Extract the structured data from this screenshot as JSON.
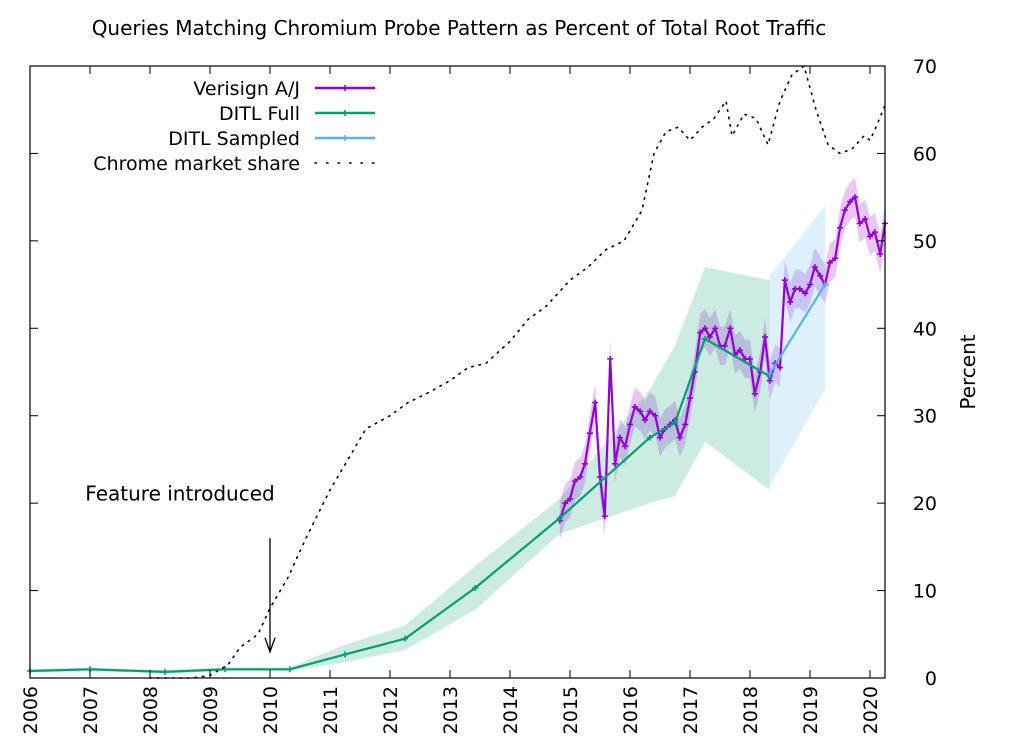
{
  "chart_data": {
    "type": "line",
    "title": "Queries Matching Chromium Probe Pattern as Percent of Total Root Traffic",
    "xlabel": "",
    "ylabel": "Percent",
    "xlim": [
      2006,
      2020.25
    ],
    "ylim": [
      0,
      70
    ],
    "x_ticks": [
      "2006",
      "2007",
      "2008",
      "2009",
      "2010",
      "2011",
      "2012",
      "2013",
      "2014",
      "2015",
      "2016",
      "2017",
      "2018",
      "2019",
      "2020"
    ],
    "y_ticks": [
      "0",
      "10",
      "20",
      "30",
      "40",
      "50",
      "60",
      "70"
    ],
    "y_axis_side": "right",
    "grid": false,
    "legend_position": "top-left",
    "annotation": {
      "text": "Feature introduced",
      "x": 2010.0,
      "y_text": 18,
      "arrow_from": 16,
      "arrow_to": 3
    },
    "series": [
      {
        "name": "Verisign A/J",
        "color": "#9400d3",
        "band_color": "#9400d3",
        "x": [
          2014.83,
          2014.92,
          2015.0,
          2015.08,
          2015.17,
          2015.25,
          2015.33,
          2015.42,
          2015.5,
          2015.58,
          2015.67,
          2015.75,
          2015.83,
          2015.92,
          2016.0,
          2016.08,
          2016.17,
          2016.25,
          2016.33,
          2016.42,
          2016.5,
          2016.58,
          2016.67,
          2016.75,
          2016.83,
          2016.92,
          2017.0,
          2017.08,
          2017.17,
          2017.25,
          2017.33,
          2017.42,
          2017.5,
          2017.58,
          2017.67,
          2017.75,
          2017.83,
          2017.92,
          2018.0,
          2018.08,
          2018.17,
          2018.25,
          2018.33,
          2018.42,
          2018.5,
          2018.58,
          2018.67,
          2018.75,
          2018.83,
          2018.92,
          2019.0,
          2019.08,
          2019.17,
          2019.25,
          2019.33,
          2019.42,
          2019.5,
          2019.58,
          2019.67,
          2019.75,
          2019.83,
          2019.92,
          2020.0,
          2020.08,
          2020.17,
          2020.25
        ],
        "y": [
          18,
          20,
          20.5,
          22.5,
          23,
          24.5,
          28,
          31.5,
          23,
          18.5,
          36.5,
          24.5,
          27.5,
          26.5,
          29,
          31,
          30.5,
          29.5,
          30.5,
          30,
          27.5,
          28.5,
          29,
          29.5,
          27.5,
          29,
          32,
          35,
          39.5,
          40,
          39,
          40,
          38,
          38,
          40,
          37,
          37.5,
          36.5,
          36.5,
          32.5,
          35,
          39,
          34,
          36,
          35.5,
          45.5,
          43,
          44.5,
          44.5,
          44,
          45,
          47,
          46,
          45,
          47.5,
          48,
          51.5,
          53.5,
          54.5,
          55,
          52,
          52.5,
          50.5,
          51,
          48.5,
          52
        ],
        "band_halfwidth": 2.2
      },
      {
        "name": "DITL Full",
        "color": "#009e73",
        "band_color": "#009e73",
        "x": [
          2006.0,
          2007.0,
          2008.25,
          2009.25,
          2010.33,
          2011.25,
          2012.25,
          2013.42,
          2014.83,
          2016.33,
          2016.75,
          2017.25,
          2018.33
        ],
        "y": [
          0.8,
          1.0,
          0.7,
          1.0,
          1.0,
          2.7,
          4.5,
          10.3,
          18.3,
          27.5,
          29.2,
          38.8,
          34.5
        ],
        "band_low": [
          0.6,
          0.8,
          0.5,
          0.8,
          0.8,
          1.8,
          3.2,
          7.8,
          16.5,
          20,
          20.8,
          27,
          21.5
        ],
        "band_high": [
          1.0,
          1.2,
          0.9,
          1.2,
          1.2,
          3.8,
          6,
          12.8,
          20.5,
          33,
          38,
          47,
          45.5
        ]
      },
      {
        "name": "DITL Sampled",
        "color": "#56b4e9",
        "band_color": "#56b4e9",
        "x": [
          2018.33,
          2019.25
        ],
        "y": [
          34.8,
          45
        ],
        "band_low": [
          22,
          33
        ],
        "band_high": [
          46,
          54
        ]
      },
      {
        "name": "Chrome market share",
        "color": "#000000",
        "style": "dotted",
        "x": [
          2008.0,
          2008.7,
          2009.0,
          2009.3,
          2009.5,
          2009.8,
          2010.0,
          2010.3,
          2010.6,
          2011.0,
          2011.3,
          2011.6,
          2012.0,
          2012.3,
          2012.6,
          2013.0,
          2013.3,
          2013.6,
          2014.0,
          2014.3,
          2014.6,
          2015.0,
          2015.3,
          2015.6,
          2015.9,
          2016.2,
          2016.4,
          2016.6,
          2016.8,
          2017.0,
          2017.2,
          2017.4,
          2017.5,
          2017.6,
          2017.7,
          2017.9,
          2018.1,
          2018.3,
          2018.5,
          2018.7,
          2018.9,
          2019.1,
          2019.3,
          2019.5,
          2019.7,
          2019.9,
          2020.0,
          2020.1,
          2020.25
        ],
        "y": [
          0,
          0,
          0.3,
          1.5,
          3.5,
          5,
          8,
          11.5,
          16,
          21.5,
          25,
          28.5,
          30,
          31.5,
          32.5,
          34,
          35.5,
          36,
          38.5,
          41,
          42.5,
          45.5,
          47,
          49,
          50,
          53.5,
          60,
          62.5,
          63,
          61.5,
          63,
          64,
          65,
          66,
          62,
          64.5,
          64,
          61,
          66,
          69,
          70,
          65,
          61,
          60,
          60.5,
          62,
          61.5,
          63,
          65.5
        ]
      }
    ]
  }
}
